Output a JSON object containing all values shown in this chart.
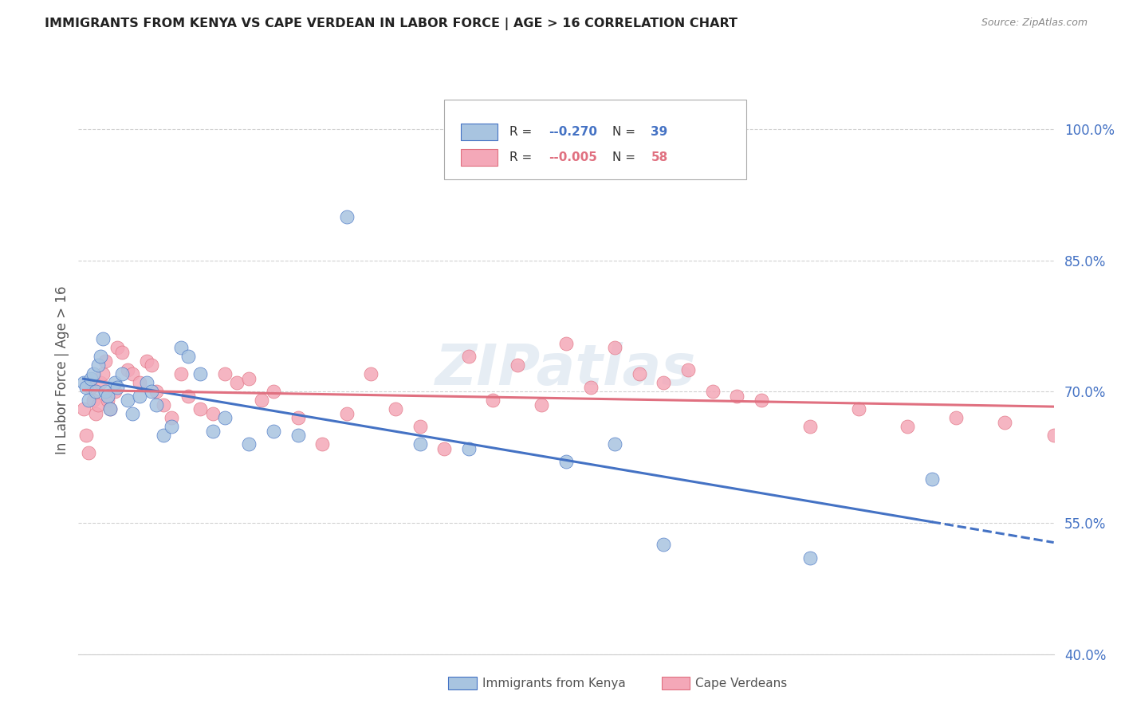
{
  "title": "IMMIGRANTS FROM KENYA VS CAPE VERDEAN IN LABOR FORCE | AGE > 16 CORRELATION CHART",
  "source": "Source: ZipAtlas.com",
  "ylabel": "In Labor Force | Age > 16",
  "y_ticks": [
    40.0,
    55.0,
    70.0,
    85.0,
    100.0
  ],
  "x_range": [
    0.0,
    40.0
  ],
  "y_range": [
    40.0,
    105.0
  ],
  "legend_label1": "Immigrants from Kenya",
  "legend_label2": "Cape Verdeans",
  "r1": "-0.270",
  "n1": "39",
  "r2": "-0.005",
  "n2": "58",
  "color_kenya": "#a8c4e0",
  "color_cape": "#f4a8b8",
  "color_kenya_line": "#4472c4",
  "color_cape_line": "#e07080",
  "background": "#ffffff",
  "grid_color": "#cccccc",
  "watermark": "ZIPatlas",
  "kenya_x": [
    0.2,
    0.3,
    0.4,
    0.5,
    0.6,
    0.7,
    0.8,
    0.9,
    1.0,
    1.1,
    1.2,
    1.3,
    1.5,
    1.6,
    1.8,
    2.0,
    2.2,
    2.5,
    2.8,
    3.0,
    3.2,
    3.5,
    3.8,
    4.2,
    4.5,
    5.0,
    5.5,
    6.0,
    7.0,
    8.0,
    9.0,
    11.0,
    14.0,
    16.0,
    20.0,
    22.0,
    24.0,
    30.0,
    35.0
  ],
  "kenya_y": [
    71.0,
    70.5,
    69.0,
    71.5,
    72.0,
    70.0,
    73.0,
    74.0,
    76.0,
    70.0,
    69.5,
    68.0,
    71.0,
    70.5,
    72.0,
    69.0,
    67.5,
    69.5,
    71.0,
    70.0,
    68.5,
    65.0,
    66.0,
    75.0,
    74.0,
    72.0,
    65.5,
    67.0,
    64.0,
    65.5,
    65.0,
    90.0,
    64.0,
    63.5,
    62.0,
    64.0,
    52.5,
    51.0,
    60.0
  ],
  "cape_x": [
    0.2,
    0.3,
    0.4,
    0.5,
    0.6,
    0.7,
    0.8,
    0.9,
    1.0,
    1.1,
    1.2,
    1.3,
    1.5,
    1.6,
    1.8,
    2.0,
    2.2,
    2.5,
    2.8,
    3.0,
    3.2,
    3.5,
    3.8,
    4.2,
    4.5,
    5.0,
    5.5,
    6.0,
    6.5,
    7.0,
    7.5,
    8.0,
    9.0,
    10.0,
    11.0,
    12.0,
    13.0,
    14.0,
    15.0,
    16.0,
    17.0,
    18.0,
    19.0,
    20.0,
    21.0,
    22.0,
    23.0,
    24.0,
    25.0,
    26.0,
    27.0,
    28.0,
    30.0,
    32.0,
    34.0,
    36.0,
    38.0,
    40.0
  ],
  "cape_y": [
    68.0,
    65.0,
    63.0,
    70.5,
    69.0,
    67.5,
    68.5,
    71.0,
    72.0,
    73.5,
    69.0,
    68.0,
    70.0,
    75.0,
    74.5,
    72.5,
    72.0,
    71.0,
    73.5,
    73.0,
    70.0,
    68.5,
    67.0,
    72.0,
    69.5,
    68.0,
    67.5,
    72.0,
    71.0,
    71.5,
    69.0,
    70.0,
    67.0,
    64.0,
    67.5,
    72.0,
    68.0,
    66.0,
    63.5,
    74.0,
    69.0,
    73.0,
    68.5,
    75.5,
    70.5,
    75.0,
    72.0,
    71.0,
    72.5,
    70.0,
    69.5,
    69.0,
    66.0,
    68.0,
    66.0,
    67.0,
    66.5,
    65.0
  ]
}
